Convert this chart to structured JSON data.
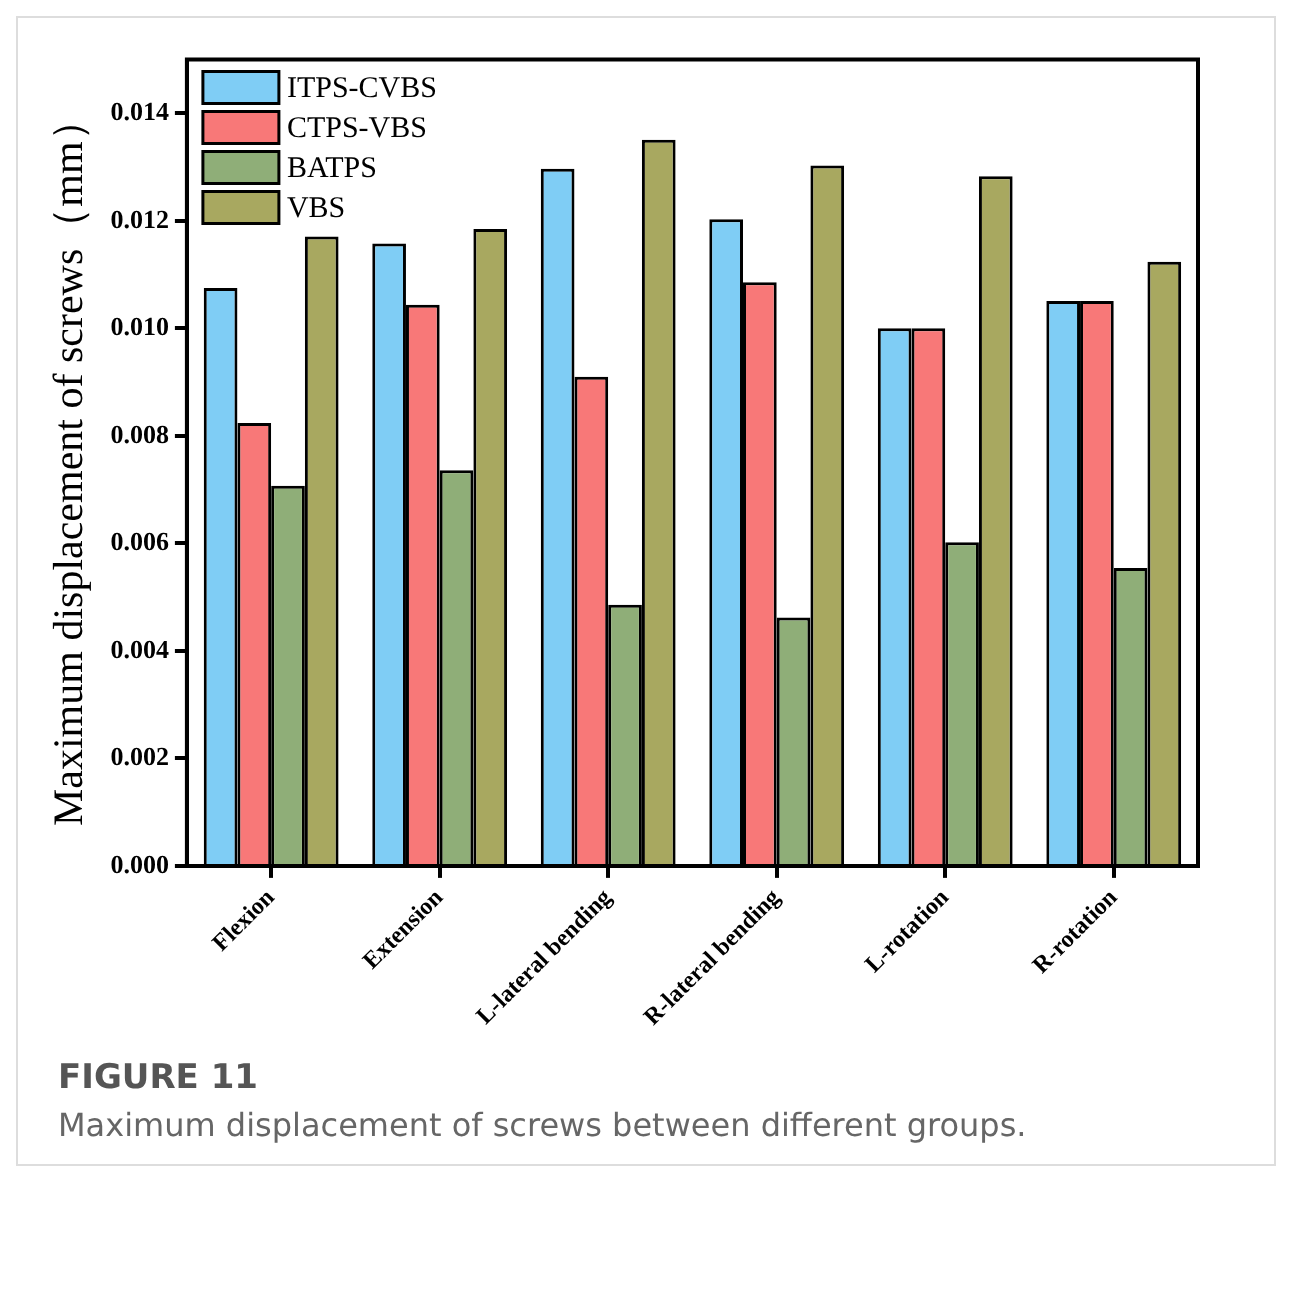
{
  "chart_data": {
    "type": "bar",
    "ylabel": "Maximum displacement of screws（mm）",
    "categories": [
      "Flexion",
      "Extension",
      "L-lateral bending",
      "R-lateral bending",
      "L-rotation",
      "R-rotation"
    ],
    "series": [
      {
        "name": "ITPS-CVBS",
        "color": "#7fcdf5",
        "values": [
          0.01075,
          0.01158,
          0.01297,
          0.01203,
          0.01,
          0.01051
        ]
      },
      {
        "name": "CTPS-VBS",
        "color": "#f87878",
        "values": [
          0.00824,
          0.01044,
          0.0091,
          0.01086,
          0.01,
          0.01051
        ]
      },
      {
        "name": "BATPS",
        "color": "#8fae78",
        "values": [
          0.00707,
          0.00736,
          0.00486,
          0.00462,
          0.00602,
          0.00554
        ]
      },
      {
        "name": "VBS",
        "color": "#a8a860",
        "values": [
          0.01171,
          0.01185,
          0.01351,
          0.01303,
          0.01283,
          0.01124
        ]
      }
    ],
    "ylim": [
      0,
      0.015
    ],
    "yticks": [
      {
        "value": 0,
        "label": "0.000"
      },
      {
        "value": 0.002,
        "label": "0.002"
      },
      {
        "value": 0.004,
        "label": "0.004"
      },
      {
        "value": 0.006,
        "label": "0.006"
      },
      {
        "value": 0.008,
        "label": "0.008"
      },
      {
        "value": 0.01,
        "label": "0.010"
      },
      {
        "value": 0.012,
        "label": "0.012"
      },
      {
        "value": 0.014,
        "label": "0.014"
      }
    ],
    "grid": false,
    "legend": "top left",
    "annotations": [
      "FIGURE 11",
      "Maximum displacement of screws between different groups."
    ]
  }
}
